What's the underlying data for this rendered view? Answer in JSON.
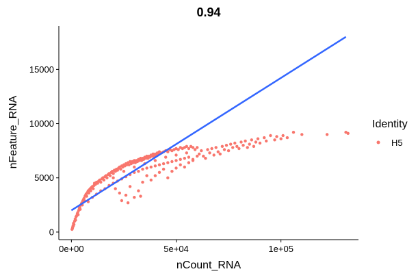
{
  "chart_data": {
    "type": "scatter",
    "title": "0.94",
    "xlabel": "nCount_RNA",
    "ylabel": "nFeature_RNA",
    "xlim": [
      -6000,
      137000
    ],
    "ylim": [
      -700,
      19000
    ],
    "x_ticks": [
      {
        "value": 0,
        "label": "0e+00"
      },
      {
        "value": 50000,
        "label": "5e+04"
      },
      {
        "value": 100000,
        "label": "1e+05"
      }
    ],
    "y_ticks": [
      {
        "value": 0,
        "label": "0"
      },
      {
        "value": 5000,
        "label": "5000"
      },
      {
        "value": 10000,
        "label": "10000"
      },
      {
        "value": 15000,
        "label": "15000"
      }
    ],
    "grid": false,
    "legend": {
      "title": "Identity",
      "position": "right",
      "entries": [
        {
          "label": "H5",
          "color": "#F8766D"
        }
      ]
    },
    "point_color": "#F8766D",
    "trend_line": {
      "color": "#3366FF",
      "x": [
        0,
        131000
      ],
      "y": [
        2000,
        18000
      ]
    },
    "series": [
      {
        "name": "H5",
        "points": [
          [
            300,
            250
          ],
          [
            500,
            350
          ],
          [
            600,
            450
          ],
          [
            800,
            600
          ],
          [
            900,
            550
          ],
          [
            1000,
            800
          ],
          [
            1200,
            700
          ],
          [
            1500,
            1000
          ],
          [
            1800,
            1200
          ],
          [
            2000,
            1100
          ],
          [
            2200,
            1400
          ],
          [
            2500,
            1500
          ],
          [
            2800,
            1700
          ],
          [
            3000,
            1800
          ],
          [
            3200,
            1600
          ],
          [
            3500,
            2000
          ],
          [
            3800,
            2200
          ],
          [
            4000,
            2300
          ],
          [
            4200,
            2100
          ],
          [
            4500,
            2500
          ],
          [
            4800,
            2600
          ],
          [
            5000,
            2700
          ],
          [
            5200,
            2500
          ],
          [
            5500,
            2900
          ],
          [
            5800,
            3000
          ],
          [
            6000,
            3100
          ],
          [
            6200,
            2900
          ],
          [
            6500,
            3300
          ],
          [
            6800,
            3400
          ],
          [
            7000,
            3500
          ],
          [
            7300,
            3300
          ],
          [
            7500,
            3600
          ],
          [
            7800,
            3700
          ],
          [
            8000,
            3800
          ],
          [
            8300,
            3600
          ],
          [
            8600,
            3900
          ],
          [
            9000,
            4000
          ],
          [
            9200,
            3800
          ],
          [
            9500,
            4100
          ],
          [
            10000,
            4200
          ],
          [
            10400,
            4000
          ],
          [
            10800,
            4300
          ],
          [
            11000,
            4500
          ],
          [
            11500,
            4400
          ],
          [
            12000,
            4600
          ],
          [
            12500,
            4500
          ],
          [
            13000,
            4700
          ],
          [
            13500,
            4800
          ],
          [
            14000,
            4600
          ],
          [
            14500,
            4900
          ],
          [
            15000,
            5000
          ],
          [
            15500,
            4800
          ],
          [
            16000,
            5100
          ],
          [
            16500,
            5200
          ],
          [
            17000,
            5000
          ],
          [
            17500,
            5300
          ],
          [
            18000,
            5400
          ],
          [
            18500,
            5200
          ],
          [
            19000,
            5500
          ],
          [
            19500,
            5600
          ],
          [
            20000,
            5400
          ],
          [
            20500,
            5700
          ],
          [
            21000,
            5600
          ],
          [
            21500,
            5800
          ],
          [
            22000,
            5700
          ],
          [
            22500,
            5900
          ],
          [
            23000,
            6000
          ],
          [
            23500,
            5800
          ],
          [
            24000,
            6100
          ],
          [
            24500,
            6000
          ],
          [
            25000,
            6200
          ],
          [
            25500,
            6100
          ],
          [
            26000,
            6300
          ],
          [
            26500,
            6200
          ],
          [
            27000,
            6400
          ],
          [
            27500,
            6200
          ],
          [
            28000,
            6500
          ],
          [
            28500,
            6300
          ],
          [
            29000,
            6500
          ],
          [
            29500,
            6400
          ],
          [
            30000,
            6600
          ],
          [
            30500,
            6400
          ],
          [
            31000,
            6600
          ],
          [
            31500,
            6500
          ],
          [
            32000,
            6700
          ],
          [
            32500,
            6600
          ],
          [
            33000,
            6800
          ],
          [
            33500,
            6600
          ],
          [
            34000,
            6800
          ],
          [
            34500,
            6700
          ],
          [
            35000,
            6900
          ],
          [
            35500,
            6800
          ],
          [
            36000,
            7000
          ],
          [
            36500,
            6800
          ],
          [
            37000,
            7000
          ],
          [
            37500,
            6900
          ],
          [
            38000,
            7100
          ],
          [
            38500,
            7000
          ],
          [
            39000,
            7200
          ],
          [
            39500,
            7000
          ],
          [
            40000,
            7200
          ],
          [
            40500,
            7100
          ],
          [
            41000,
            7300
          ],
          [
            41500,
            7200
          ],
          [
            42000,
            7400
          ],
          [
            43000,
            7300
          ],
          [
            44000,
            7400
          ],
          [
            45000,
            7500
          ],
          [
            46000,
            7400
          ],
          [
            47000,
            7600
          ],
          [
            48000,
            7500
          ],
          [
            49000,
            7600
          ],
          [
            50000,
            7700
          ],
          [
            51000,
            7600
          ],
          [
            52000,
            7800
          ],
          [
            53000,
            7700
          ],
          [
            54000,
            7800
          ],
          [
            55000,
            7900
          ],
          [
            56000,
            7700
          ],
          [
            57000,
            7900
          ],
          [
            58000,
            7800
          ],
          [
            59000,
            7600
          ],
          [
            60000,
            7800
          ],
          [
            8000,
            2800
          ],
          [
            10000,
            3200
          ],
          [
            12000,
            3500
          ],
          [
            14000,
            3800
          ],
          [
            16000,
            4000
          ],
          [
            18000,
            4300
          ],
          [
            20000,
            4500
          ],
          [
            22000,
            4700
          ],
          [
            24000,
            4900
          ],
          [
            26000,
            5100
          ],
          [
            28000,
            5300
          ],
          [
            30000,
            5500
          ],
          [
            32000,
            5600
          ],
          [
            34000,
            5800
          ],
          [
            36000,
            5900
          ],
          [
            38000,
            6000
          ],
          [
            40000,
            6100
          ],
          [
            42000,
            6200
          ],
          [
            44000,
            6300
          ],
          [
            46000,
            6400
          ],
          [
            48000,
            6500
          ],
          [
            50000,
            6600
          ],
          [
            52000,
            6700
          ],
          [
            54000,
            6800
          ],
          [
            56000,
            6900
          ],
          [
            58000,
            6700
          ],
          [
            60000,
            7000
          ],
          [
            20000,
            5000
          ],
          [
            25000,
            5600
          ],
          [
            30000,
            6000
          ],
          [
            35000,
            6300
          ],
          [
            40000,
            6600
          ],
          [
            45000,
            6900
          ],
          [
            50000,
            7100
          ],
          [
            55000,
            7300
          ],
          [
            21000,
            4000
          ],
          [
            23000,
            3600
          ],
          [
            26000,
            3400
          ],
          [
            28000,
            4200
          ],
          [
            30000,
            3200
          ],
          [
            32000,
            3800
          ],
          [
            34000,
            4600
          ],
          [
            36000,
            5200
          ],
          [
            24000,
            2900
          ],
          [
            27000,
            2700
          ],
          [
            33000,
            3300
          ],
          [
            38000,
            4800
          ],
          [
            40000,
            5200
          ],
          [
            42000,
            5500
          ],
          [
            44000,
            5800
          ],
          [
            46000,
            5000
          ],
          [
            48000,
            5600
          ],
          [
            50000,
            5900
          ],
          [
            52000,
            6200
          ],
          [
            54000,
            6000
          ],
          [
            56000,
            6400
          ],
          [
            58000,
            6600
          ],
          [
            61000,
            7200
          ],
          [
            62000,
            7500
          ],
          [
            63000,
            7000
          ],
          [
            64000,
            6800
          ],
          [
            65000,
            7600
          ],
          [
            66000,
            7300
          ],
          [
            67000,
            7700
          ],
          [
            68000,
            7100
          ],
          [
            69000,
            7800
          ],
          [
            70000,
            7400
          ],
          [
            71000,
            7200
          ],
          [
            72000,
            7900
          ],
          [
            73000,
            7600
          ],
          [
            74000,
            8000
          ],
          [
            75000,
            7500
          ],
          [
            76000,
            8100
          ],
          [
            77000,
            7800
          ],
          [
            78000,
            8200
          ],
          [
            79000,
            7900
          ],
          [
            80000,
            7700
          ],
          [
            81000,
            8300
          ],
          [
            82000,
            8000
          ],
          [
            83000,
            8400
          ],
          [
            84000,
            7800
          ],
          [
            85000,
            8100
          ],
          [
            86000,
            8500
          ],
          [
            87000,
            7900
          ],
          [
            88000,
            8300
          ],
          [
            89000,
            8600
          ],
          [
            90000,
            8200
          ],
          [
            92000,
            8700
          ],
          [
            93000,
            8400
          ],
          [
            95000,
            8900
          ],
          [
            97000,
            8500
          ],
          [
            98000,
            8800
          ],
          [
            100000,
            8600
          ],
          [
            101000,
            8900
          ],
          [
            103000,
            8700
          ],
          [
            106000,
            9200
          ],
          [
            110000,
            9000
          ],
          [
            122000,
            9000
          ],
          [
            131000,
            9200
          ],
          [
            132000,
            9100
          ]
        ]
      }
    ]
  }
}
